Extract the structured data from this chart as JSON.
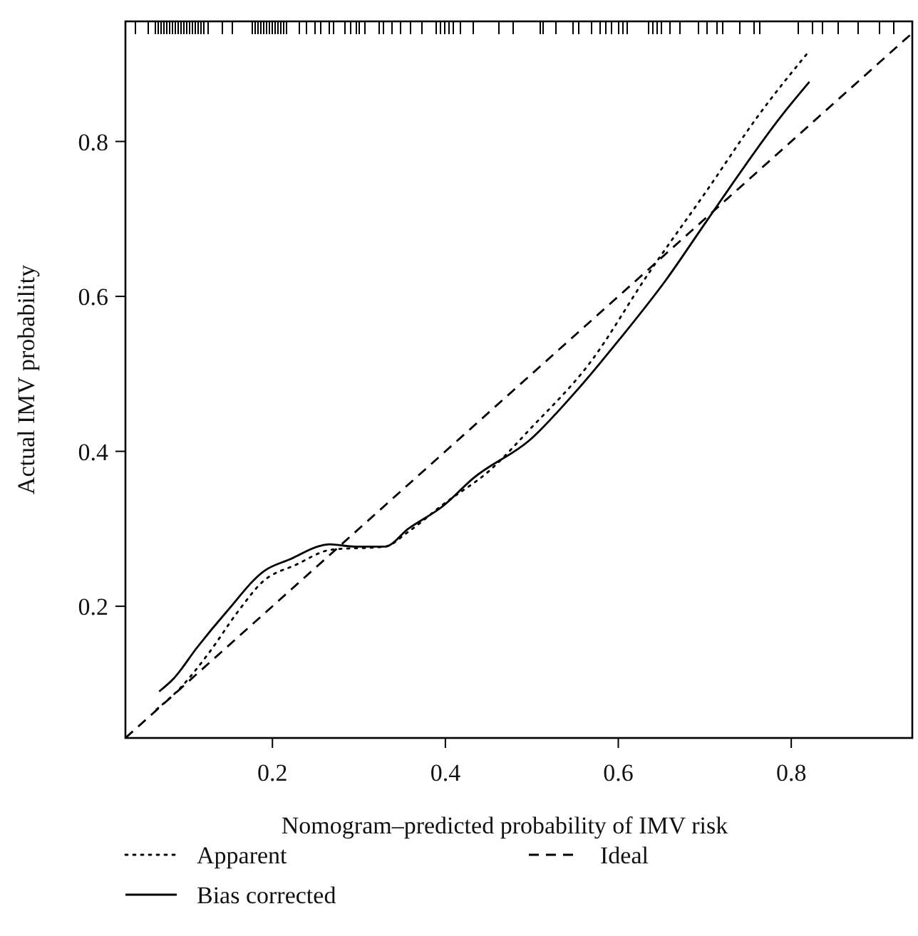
{
  "chart_data": {
    "type": "line",
    "xlabel": "Nomogram–predicted probability of IMV risk",
    "ylabel": "Actual IMV probability",
    "xlim": [
      0.03,
      0.94
    ],
    "ylim": [
      0.03,
      0.955
    ],
    "xticks": [
      0.2,
      0.4,
      0.6,
      0.8
    ],
    "yticks": [
      0.2,
      0.4,
      0.6,
      0.8
    ],
    "grid": false,
    "legend": "bottom",
    "marker": "none",
    "series": [
      {
        "name": "Apparent",
        "color": "#000000",
        "line_style": "dotted",
        "x": [
          0.066,
          0.093,
          0.126,
          0.16,
          0.188,
          0.228,
          0.268,
          0.33,
          0.357,
          0.398,
          0.452,
          0.499,
          0.567,
          0.634,
          0.702,
          0.763,
          0.821
        ],
        "values": [
          0.067,
          0.094,
          0.139,
          0.193,
          0.231,
          0.254,
          0.273,
          0.277,
          0.296,
          0.332,
          0.376,
          0.43,
          0.514,
          0.628,
          0.736,
          0.835,
          0.917
        ]
      },
      {
        "name": "Ideal",
        "color": "#000000",
        "line_style": "dashed",
        "x": [
          0.03,
          0.94
        ],
        "values": [
          0.03,
          0.94
        ]
      },
      {
        "name": "Bias corrected",
        "color": "#000000",
        "line_style": "solid",
        "x": [
          0.069,
          0.086,
          0.113,
          0.147,
          0.191,
          0.221,
          0.255,
          0.266,
          0.296,
          0.33,
          0.357,
          0.398,
          0.432,
          0.499,
          0.55,
          0.601,
          0.655,
          0.702,
          0.79,
          0.821
        ],
        "values": [
          0.09,
          0.107,
          0.147,
          0.193,
          0.246,
          0.261,
          0.278,
          0.28,
          0.277,
          0.277,
          0.3,
          0.33,
          0.365,
          0.416,
          0.476,
          0.544,
          0.621,
          0.697,
          0.835,
          0.877
        ]
      }
    ]
  }
}
